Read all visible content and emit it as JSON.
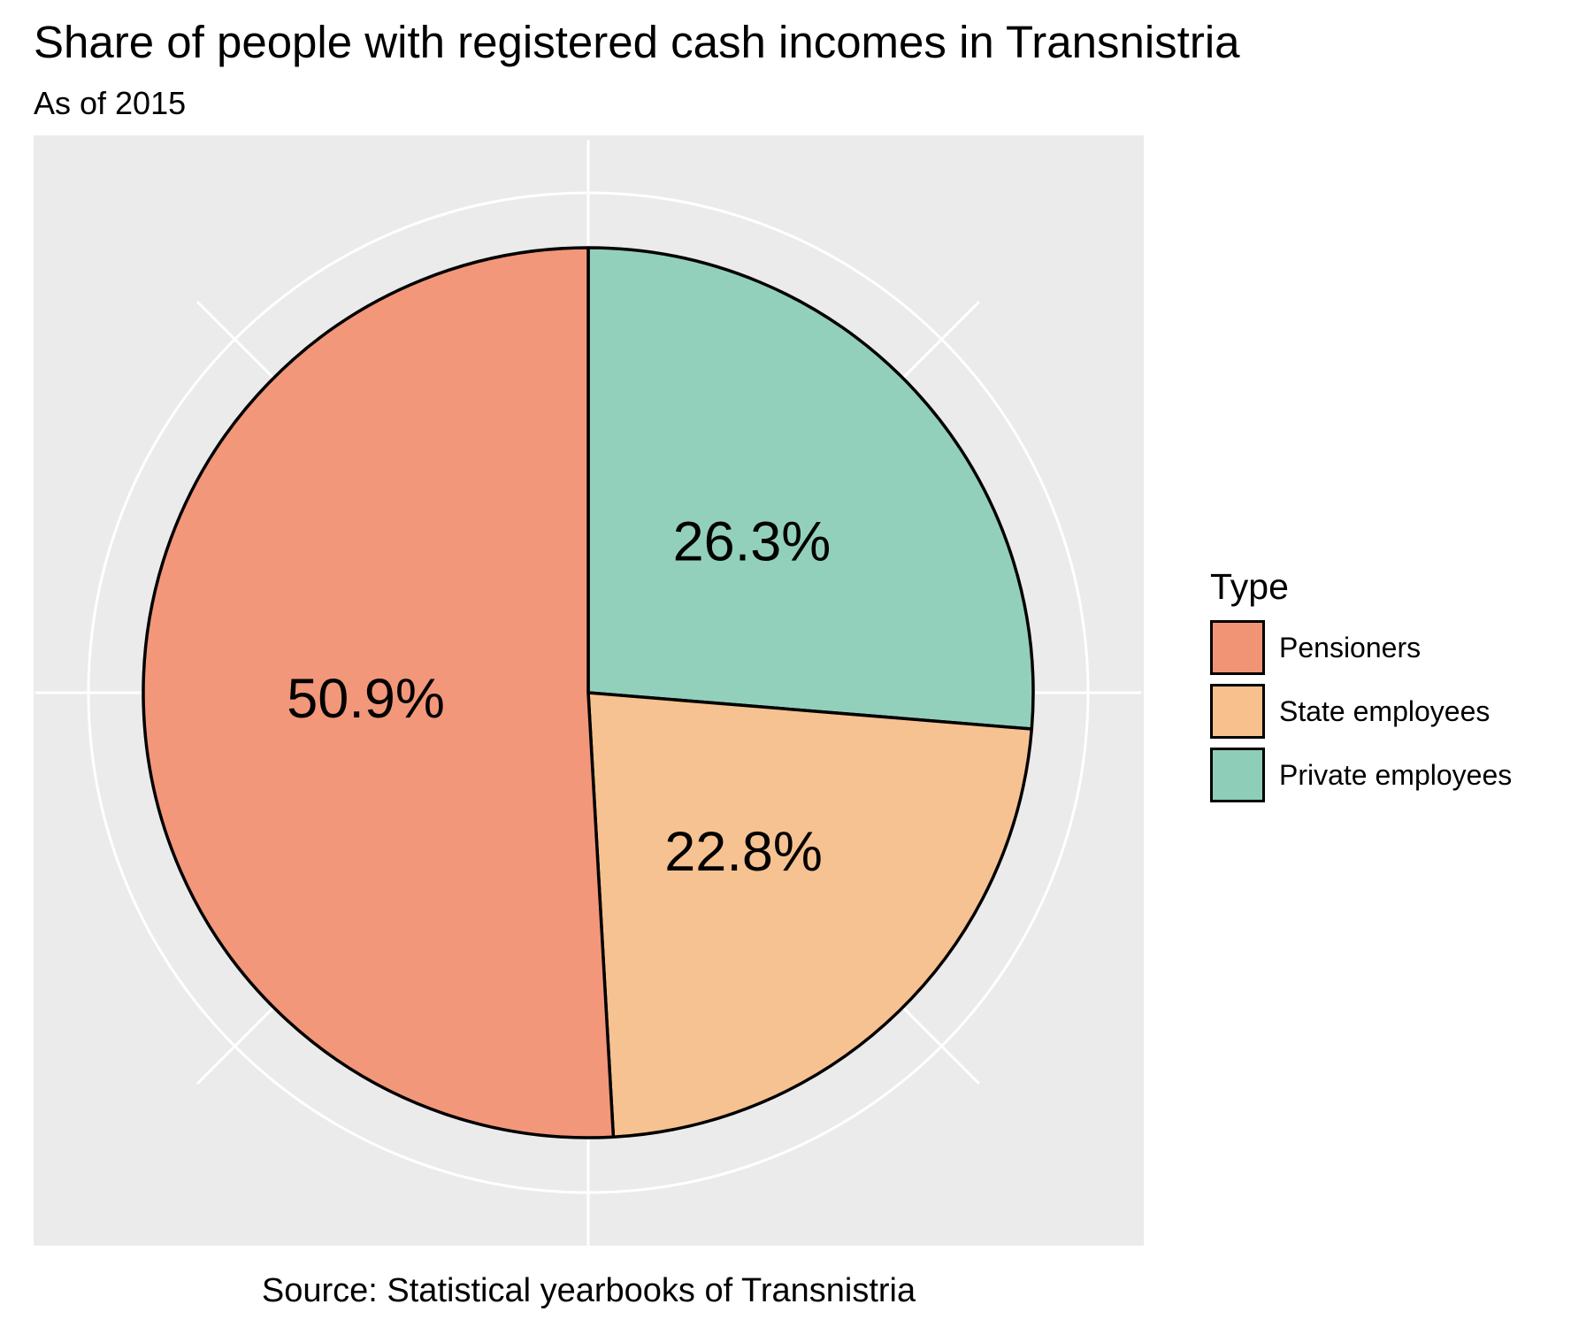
{
  "chart_data": {
    "type": "pie",
    "title": "Share of people with registered cash incomes in Transnistria",
    "subtitle": "As of 2015",
    "caption": "Source: Statistical yearbooks of Transnistria",
    "legend_title": "Type",
    "legend_position": "right",
    "grid": true,
    "panel_background": "#EBEBEB",
    "slices": [
      {
        "label": "Pensioners",
        "value": 50.9,
        "display": "50.9%",
        "color": "#F19375"
      },
      {
        "label": "State employees",
        "value": 22.8,
        "display": "22.8%",
        "color": "#F7C08C"
      },
      {
        "label": "Private employees",
        "value": 26.3,
        "display": "26.3%",
        "color": "#8ECEB9"
      }
    ]
  }
}
